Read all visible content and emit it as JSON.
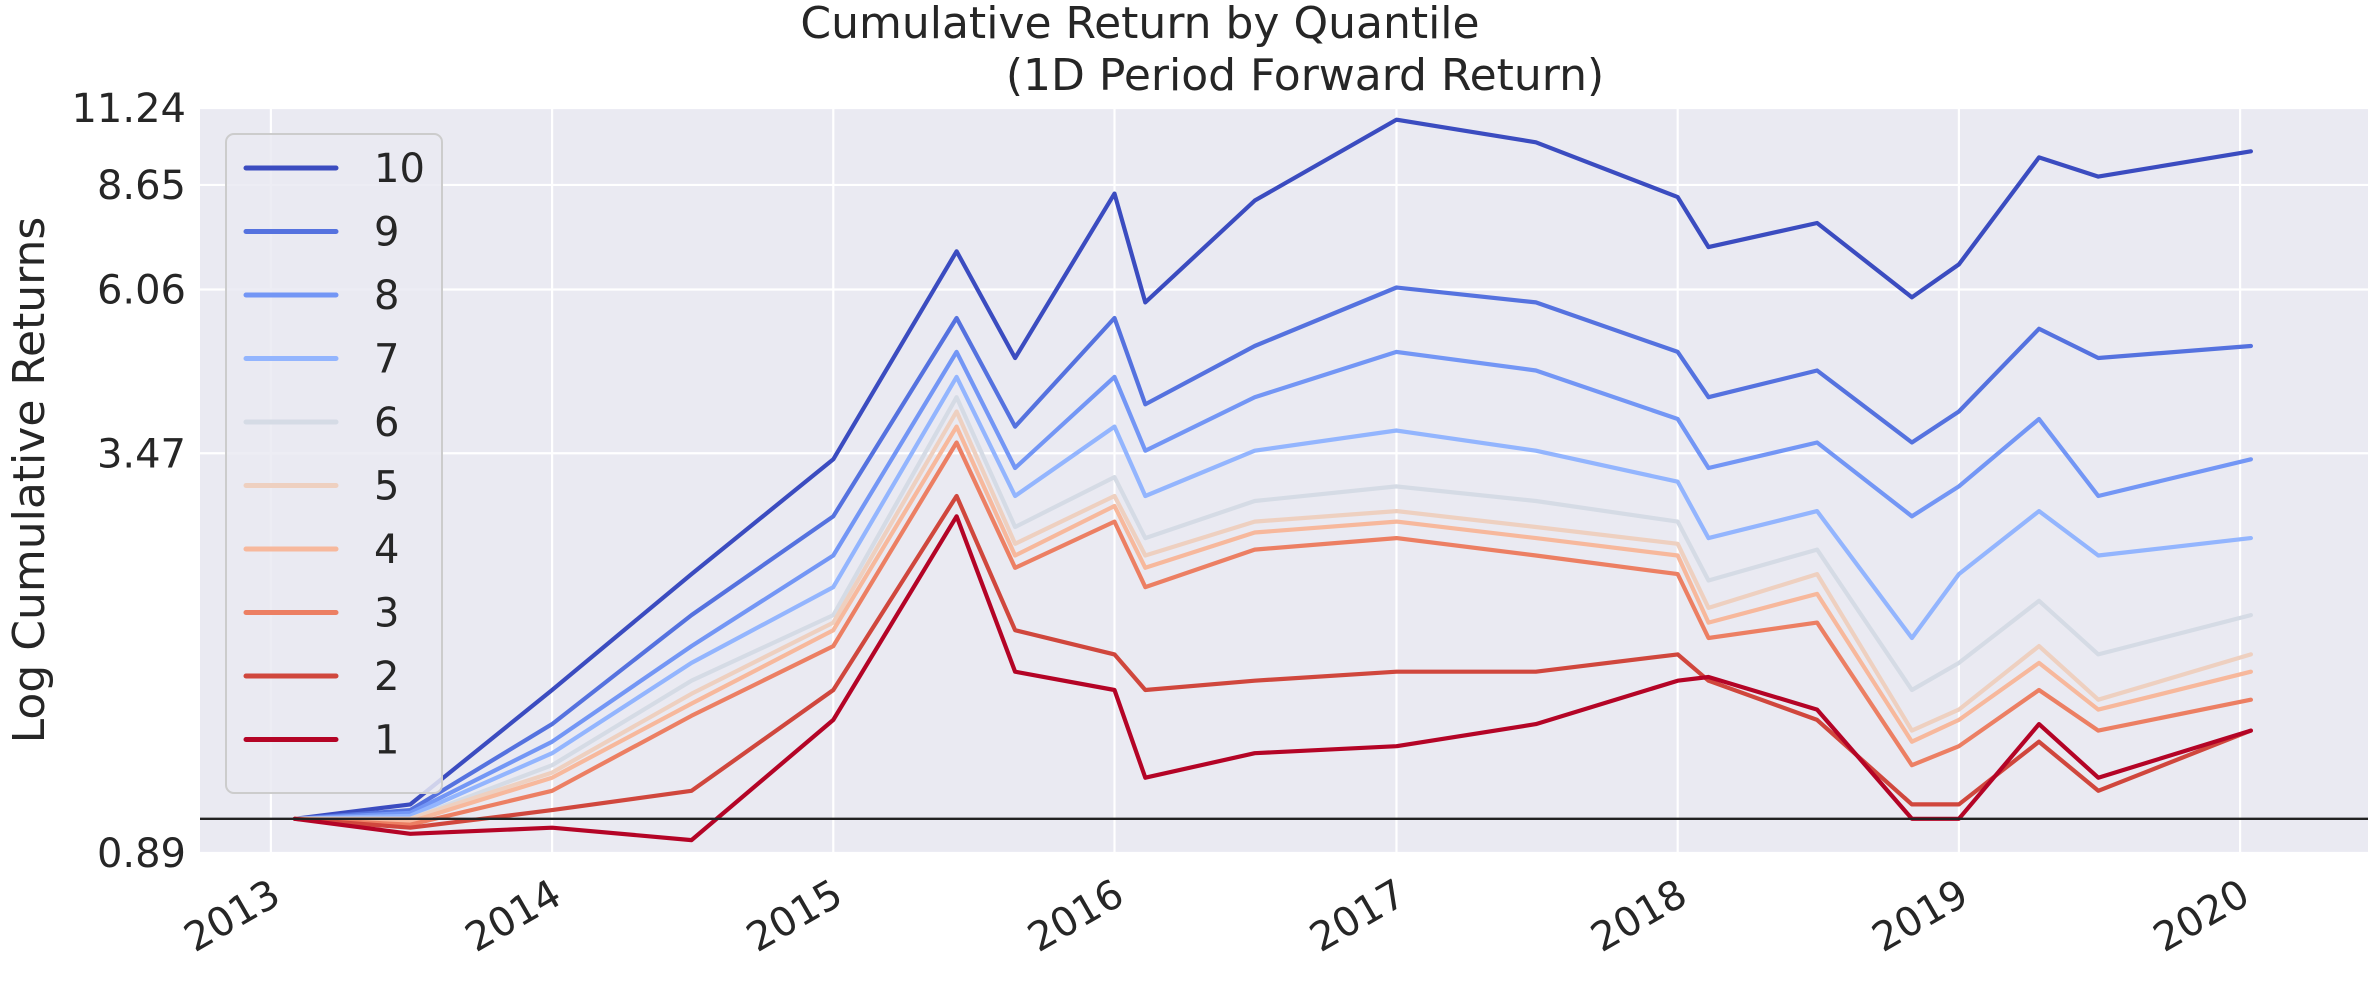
{
  "chart_data": {
    "type": "line",
    "title_line1": "Cumulative Return by Quantile",
    "title_line2": "(1D Period Forward Return)",
    "xlabel": "",
    "ylabel": "Log Cumulative Returns",
    "yscale": "log",
    "ylim": [
      0.89,
      11.24
    ],
    "xlim": [
      "2012-10-01",
      "2020-06-15"
    ],
    "y_ticks": [
      0.89,
      3.47,
      6.06,
      8.65,
      11.24
    ],
    "y_tick_labels": [
      "0.89",
      "3.47",
      "6.06",
      "8.65",
      "11.24"
    ],
    "x_ticks": [
      "2013-01-01",
      "2014-01-01",
      "2015-01-01",
      "2016-01-01",
      "2017-01-01",
      "2018-01-01",
      "2019-01-01",
      "2020-01-01"
    ],
    "x_tick_labels": [
      "2013",
      "2014",
      "2015",
      "2016",
      "2017",
      "2018",
      "2019",
      "2020"
    ],
    "baseline": 1.0,
    "grid": true,
    "legend_position": "upper-left",
    "x": [
      "2013-02-01",
      "2013-07-01",
      "2014-01-01",
      "2014-07-01",
      "2015-01-01",
      "2015-06-10",
      "2015-08-25",
      "2016-01-01",
      "2016-02-10",
      "2016-07-01",
      "2017-01-01",
      "2017-07-01",
      "2018-01-01",
      "2018-02-10",
      "2018-07-01",
      "2018-11-01",
      "2019-01-01",
      "2019-04-15",
      "2019-07-01",
      "2020-01-15"
    ],
    "series": [
      {
        "name": "10",
        "color": "#3b4cc0",
        "values": [
          1.0,
          1.05,
          1.55,
          2.3,
          3.4,
          6.9,
          4.8,
          8.4,
          5.8,
          8.2,
          10.8,
          10.0,
          8.3,
          7.0,
          7.6,
          5.9,
          6.6,
          9.5,
          8.9,
          9.7
        ]
      },
      {
        "name": "9",
        "color": "#5572df",
        "values": [
          1.0,
          1.03,
          1.38,
          2.0,
          2.8,
          5.5,
          3.8,
          5.5,
          4.1,
          5.0,
          6.1,
          5.8,
          4.9,
          4.2,
          4.6,
          3.6,
          4.0,
          5.3,
          4.8,
          5.0
        ]
      },
      {
        "name": "8",
        "color": "#7396f5",
        "values": [
          1.0,
          1.02,
          1.3,
          1.8,
          2.45,
          4.9,
          3.3,
          4.5,
          3.5,
          4.2,
          4.9,
          4.6,
          3.9,
          3.3,
          3.6,
          2.8,
          3.1,
          3.9,
          3.0,
          3.4
        ]
      },
      {
        "name": "7",
        "color": "#93b5fe",
        "values": [
          1.0,
          1.01,
          1.25,
          1.7,
          2.2,
          4.5,
          3.0,
          3.8,
          3.0,
          3.5,
          3.75,
          3.5,
          3.15,
          2.6,
          2.85,
          1.85,
          2.3,
          2.85,
          2.45,
          2.6
        ]
      },
      {
        "name": "6",
        "color": "#d5dbe5",
        "values": [
          1.0,
          1.0,
          1.2,
          1.6,
          2.0,
          4.2,
          2.7,
          3.2,
          2.6,
          2.95,
          3.1,
          2.95,
          2.75,
          2.25,
          2.5,
          1.55,
          1.7,
          2.1,
          1.75,
          2.0
        ]
      },
      {
        "name": "5",
        "color": "#eed0c0",
        "values": [
          1.0,
          1.0,
          1.17,
          1.53,
          1.95,
          4.0,
          2.55,
          3.0,
          2.45,
          2.75,
          2.85,
          2.7,
          2.55,
          2.05,
          2.3,
          1.35,
          1.45,
          1.8,
          1.5,
          1.75
        ]
      },
      {
        "name": "4",
        "color": "#f7b89c",
        "values": [
          1.0,
          0.99,
          1.15,
          1.48,
          1.9,
          3.8,
          2.45,
          2.9,
          2.35,
          2.65,
          2.75,
          2.6,
          2.45,
          1.95,
          2.15,
          1.3,
          1.4,
          1.7,
          1.45,
          1.65
        ]
      },
      {
        "name": "3",
        "color": "#ec7f63",
        "values": [
          1.0,
          0.98,
          1.1,
          1.42,
          1.8,
          3.6,
          2.35,
          2.75,
          2.2,
          2.5,
          2.6,
          2.45,
          2.3,
          1.85,
          1.95,
          1.2,
          1.28,
          1.55,
          1.35,
          1.5
        ]
      },
      {
        "name": "2",
        "color": "#d0473d",
        "values": [
          1.0,
          0.97,
          1.03,
          1.1,
          1.55,
          3.0,
          1.9,
          1.75,
          1.55,
          1.6,
          1.65,
          1.65,
          1.75,
          1.6,
          1.4,
          1.05,
          1.05,
          1.3,
          1.1,
          1.35
        ]
      },
      {
        "name": "1",
        "color": "#b40426",
        "values": [
          1.0,
          0.95,
          0.97,
          0.93,
          1.4,
          2.8,
          1.65,
          1.55,
          1.15,
          1.25,
          1.28,
          1.38,
          1.6,
          1.62,
          1.45,
          1.0,
          1.0,
          1.38,
          1.15,
          1.35
        ]
      }
    ]
  }
}
